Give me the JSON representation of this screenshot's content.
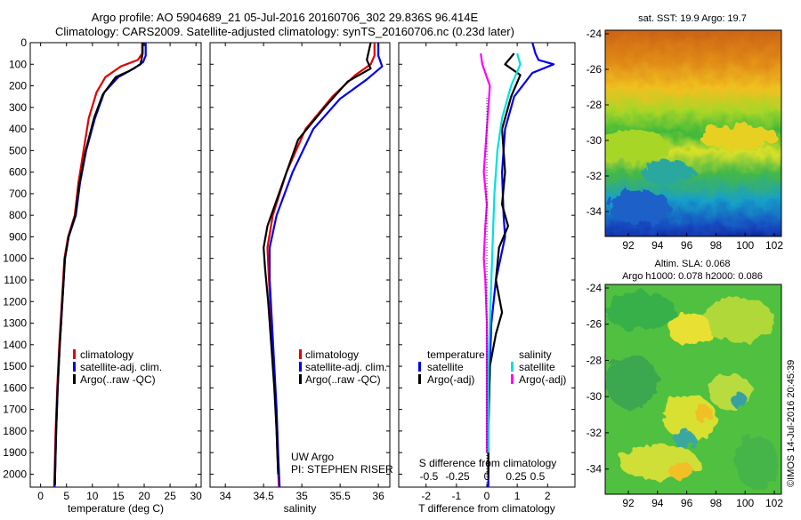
{
  "title": {
    "line1": "Argo profile: AO 5904689_21 05-Jul-2016 20160706_302 29.836S 96.414E",
    "line2": "Climatology: CARS2009. Satellite-adjusted climatology: synTS_20160706.nc (0.23d later)"
  },
  "colors": {
    "climatology": "#e00000",
    "satellite": "#0000ee",
    "argo": "#000000",
    "cyan": "#00e0e0",
    "magenta": "#ff00ff"
  },
  "depth_axis": {
    "ticks": [
      0,
      100,
      200,
      300,
      400,
      500,
      600,
      700,
      800,
      900,
      1000,
      1100,
      1200,
      1300,
      1400,
      1500,
      1600,
      1700,
      1800,
      1900,
      2000
    ],
    "range": [
      0,
      2060
    ]
  },
  "legend1": {
    "items": [
      "climatology",
      "satellite-adj. clim.",
      "Argo(..raw -QC)"
    ]
  },
  "legend2": {
    "items": [
      "climatology",
      "satellite-adj. clim.",
      "Argo(..raw -QC)"
    ]
  },
  "legend3": {
    "temp_title": "temperature",
    "sal_title": "salinity",
    "items": [
      "satellite",
      "Argo(-adj)",
      "satellite",
      "Argo(-adj)"
    ]
  },
  "credits": {
    "line1": "UW Argo",
    "line2": "PI: STEPHEN RISER"
  },
  "s_diff_label": "S difference from climatology",
  "watermark": "©IMOS 14-Jul-2016 20:45:39",
  "map1": {
    "title": "sat. SST: 19.9 Argo: 19.7",
    "yticks": [
      "-24",
      "-26",
      "-28",
      "-30",
      "-32",
      "-34"
    ],
    "xticks": [
      "92",
      "94",
      "96",
      "98",
      "100",
      "102"
    ]
  },
  "map2": {
    "title1": "Altim. SLA: 0.068",
    "title2": "Argo h1000: 0.078 h2000: 0.086",
    "yticks": [
      "-24",
      "-26",
      "-28",
      "-30",
      "-32",
      "-34"
    ],
    "xticks": [
      "92",
      "94",
      "96",
      "98",
      "100",
      "102"
    ]
  },
  "chart_data": [
    {
      "type": "line",
      "xlabel": "temperature (deg C)",
      "ylabel": "",
      "xlim": [
        -2,
        31
      ],
      "xticks": [
        0,
        5,
        10,
        15,
        20,
        25,
        30
      ],
      "series": [
        {
          "name": "climatology",
          "color": "#e00000",
          "points": [
            [
              19.6,
              0
            ],
            [
              19.6,
              50
            ],
            [
              18.8,
              80
            ],
            [
              15.5,
              110
            ],
            [
              12.5,
              160
            ],
            [
              10.8,
              230
            ],
            [
              9.3,
              350
            ],
            [
              8.3,
              500
            ],
            [
              7.3,
              650
            ],
            [
              6.6,
              800
            ],
            [
              5.3,
              900
            ],
            [
              4.6,
              1000
            ],
            [
              4.1,
              1200
            ],
            [
              3.6,
              1400
            ],
            [
              3.2,
              1600
            ],
            [
              2.9,
              1800
            ],
            [
              2.7,
              2000
            ],
            [
              2.6,
              2060
            ]
          ]
        },
        {
          "name": "satellite-adj. clim.",
          "color": "#0000ee",
          "points": [
            [
              20.3,
              0
            ],
            [
              20.3,
              60
            ],
            [
              19.8,
              90
            ],
            [
              18.0,
              120
            ],
            [
              15.0,
              160
            ],
            [
              12.3,
              230
            ],
            [
              10.5,
              350
            ],
            [
              8.8,
              500
            ],
            [
              7.6,
              650
            ],
            [
              6.8,
              800
            ],
            [
              5.4,
              900
            ],
            [
              4.7,
              1000
            ],
            [
              4.2,
              1200
            ],
            [
              3.7,
              1400
            ],
            [
              3.3,
              1600
            ],
            [
              3.0,
              1800
            ],
            [
              2.8,
              2000
            ],
            [
              2.7,
              2060
            ]
          ]
        },
        {
          "name": "Argo(..raw -QC)",
          "color": "#000000",
          "points": [
            [
              19.7,
              0
            ],
            [
              19.7,
              50
            ],
            [
              19.3,
              100
            ],
            [
              17.2,
              130
            ],
            [
              14.5,
              160
            ],
            [
              12.0,
              240
            ],
            [
              10.3,
              350
            ],
            [
              8.7,
              500
            ],
            [
              7.5,
              650
            ],
            [
              6.7,
              800
            ],
            [
              5.4,
              900
            ],
            [
              4.7,
              1000
            ],
            [
              4.2,
              1200
            ],
            [
              3.7,
              1400
            ],
            [
              3.3,
              1600
            ],
            [
              3.0,
              1800
            ],
            [
              2.8,
              2000
            ],
            [
              2.8,
              2050
            ]
          ]
        }
      ]
    },
    {
      "type": "line",
      "xlabel": "salinity",
      "ylabel": "",
      "xlim": [
        33.8,
        36.15
      ],
      "xticks": [
        34,
        34.5,
        35,
        35.5,
        36
      ],
      "series": [
        {
          "name": "climatology",
          "color": "#e00000",
          "points": [
            [
              35.95,
              0
            ],
            [
              35.95,
              60
            ],
            [
              35.9,
              100
            ],
            [
              35.7,
              150
            ],
            [
              35.4,
              250
            ],
            [
              35.05,
              400
            ],
            [
              34.8,
              600
            ],
            [
              34.62,
              800
            ],
            [
              34.55,
              950
            ],
            [
              34.57,
              1100
            ],
            [
              34.6,
              1300
            ],
            [
              34.63,
              1500
            ],
            [
              34.66,
              1700
            ],
            [
              34.68,
              1900
            ],
            [
              34.7,
              2060
            ]
          ]
        },
        {
          "name": "satellite-adj. clim.",
          "color": "#0000ee",
          "points": [
            [
              36.0,
              0
            ],
            [
              36.0,
              60
            ],
            [
              36.05,
              110
            ],
            [
              35.85,
              170
            ],
            [
              35.5,
              260
            ],
            [
              35.15,
              400
            ],
            [
              34.88,
              600
            ],
            [
              34.67,
              800
            ],
            [
              34.58,
              950
            ],
            [
              34.58,
              1100
            ],
            [
              34.61,
              1300
            ],
            [
              34.64,
              1500
            ],
            [
              34.67,
              1700
            ],
            [
              34.69,
              1900
            ],
            [
              34.71,
              2060
            ]
          ]
        },
        {
          "name": "Argo(..raw -QC)",
          "color": "#000000",
          "points": [
            [
              35.9,
              0
            ],
            [
              35.85,
              80
            ],
            [
              35.9,
              120
            ],
            [
              35.6,
              180
            ],
            [
              35.3,
              300
            ],
            [
              34.95,
              450
            ],
            [
              34.75,
              650
            ],
            [
              34.55,
              850
            ],
            [
              34.5,
              950
            ],
            [
              34.52,
              1050
            ],
            [
              34.56,
              1200
            ],
            [
              34.6,
              1400
            ],
            [
              34.64,
              1600
            ],
            [
              34.67,
              1800
            ],
            [
              34.69,
              2000
            ]
          ]
        }
      ]
    },
    {
      "type": "line",
      "xlabel": "T difference from climatology",
      "ylabel": "",
      "xlim": [
        -2.9,
        2.9
      ],
      "xticks": [
        -2,
        -1,
        0,
        1,
        2
      ],
      "s_ticks": [
        "-0.5",
        "-0.25",
        "0",
        "0.25",
        "0.5"
      ],
      "series": [
        {
          "name": "satellite",
          "color": "#0000ee",
          "points": [
            [
              1.5,
              0
            ],
            [
              1.6,
              50
            ],
            [
              1.7,
              80
            ],
            [
              2.2,
              100
            ],
            [
              1.5,
              140
            ],
            [
              0.9,
              250
            ],
            [
              0.6,
              400
            ],
            [
              0.5,
              600
            ],
            [
              0.55,
              800
            ],
            [
              0.6,
              900
            ],
            [
              0.45,
              1000
            ],
            [
              0.3,
              1100
            ],
            [
              0.15,
              1300
            ],
            [
              0.1,
              1500
            ],
            [
              0.05,
              1800
            ],
            [
              0.05,
              2060
            ]
          ]
        },
        {
          "name": "Argo(-adj)",
          "color": "#000000",
          "points": [
            [
              0.9,
              50
            ],
            [
              0.6,
              100
            ],
            [
              1.1,
              150
            ],
            [
              0.8,
              250
            ],
            [
              0.5,
              400
            ],
            [
              0.6,
              600
            ],
            [
              0.5,
              750
            ],
            [
              0.7,
              850
            ],
            [
              0.4,
              950
            ],
            [
              0.3,
              1100
            ],
            [
              0.5,
              1250
            ],
            [
              0.3,
              1350
            ],
            [
              0.1,
              1500
            ],
            [
              0.05,
              1800
            ],
            [
              0.05,
              2000
            ]
          ]
        },
        {
          "name": "satellite",
          "color": "#00e0e0",
          "points": [
            [
              1.0,
              50
            ],
            [
              1.1,
              100
            ],
            [
              0.8,
              200
            ],
            [
              0.5,
              350
            ],
            [
              0.35,
              500
            ],
            [
              0.25,
              700
            ],
            [
              0.2,
              900
            ],
            [
              0.15,
              1100
            ],
            [
              0.1,
              1300
            ],
            [
              0.05,
              1500
            ],
            [
              0.05,
              1800
            ],
            [
              0.05,
              1900
            ]
          ]
        },
        {
          "name": "Argo(-adj)",
          "color": "#ff00ff",
          "points": [
            [
              -0.2,
              50
            ],
            [
              -0.15,
              100
            ],
            [
              0.1,
              200
            ],
            [
              0.0,
              400
            ],
            [
              -0.1,
              600
            ],
            [
              0.0,
              750
            ],
            [
              -0.05,
              850
            ],
            [
              -0.1,
              1000
            ],
            [
              -0.05,
              1100
            ],
            [
              0.0,
              1300
            ],
            [
              0.0,
              1900
            ]
          ]
        }
      ]
    }
  ]
}
